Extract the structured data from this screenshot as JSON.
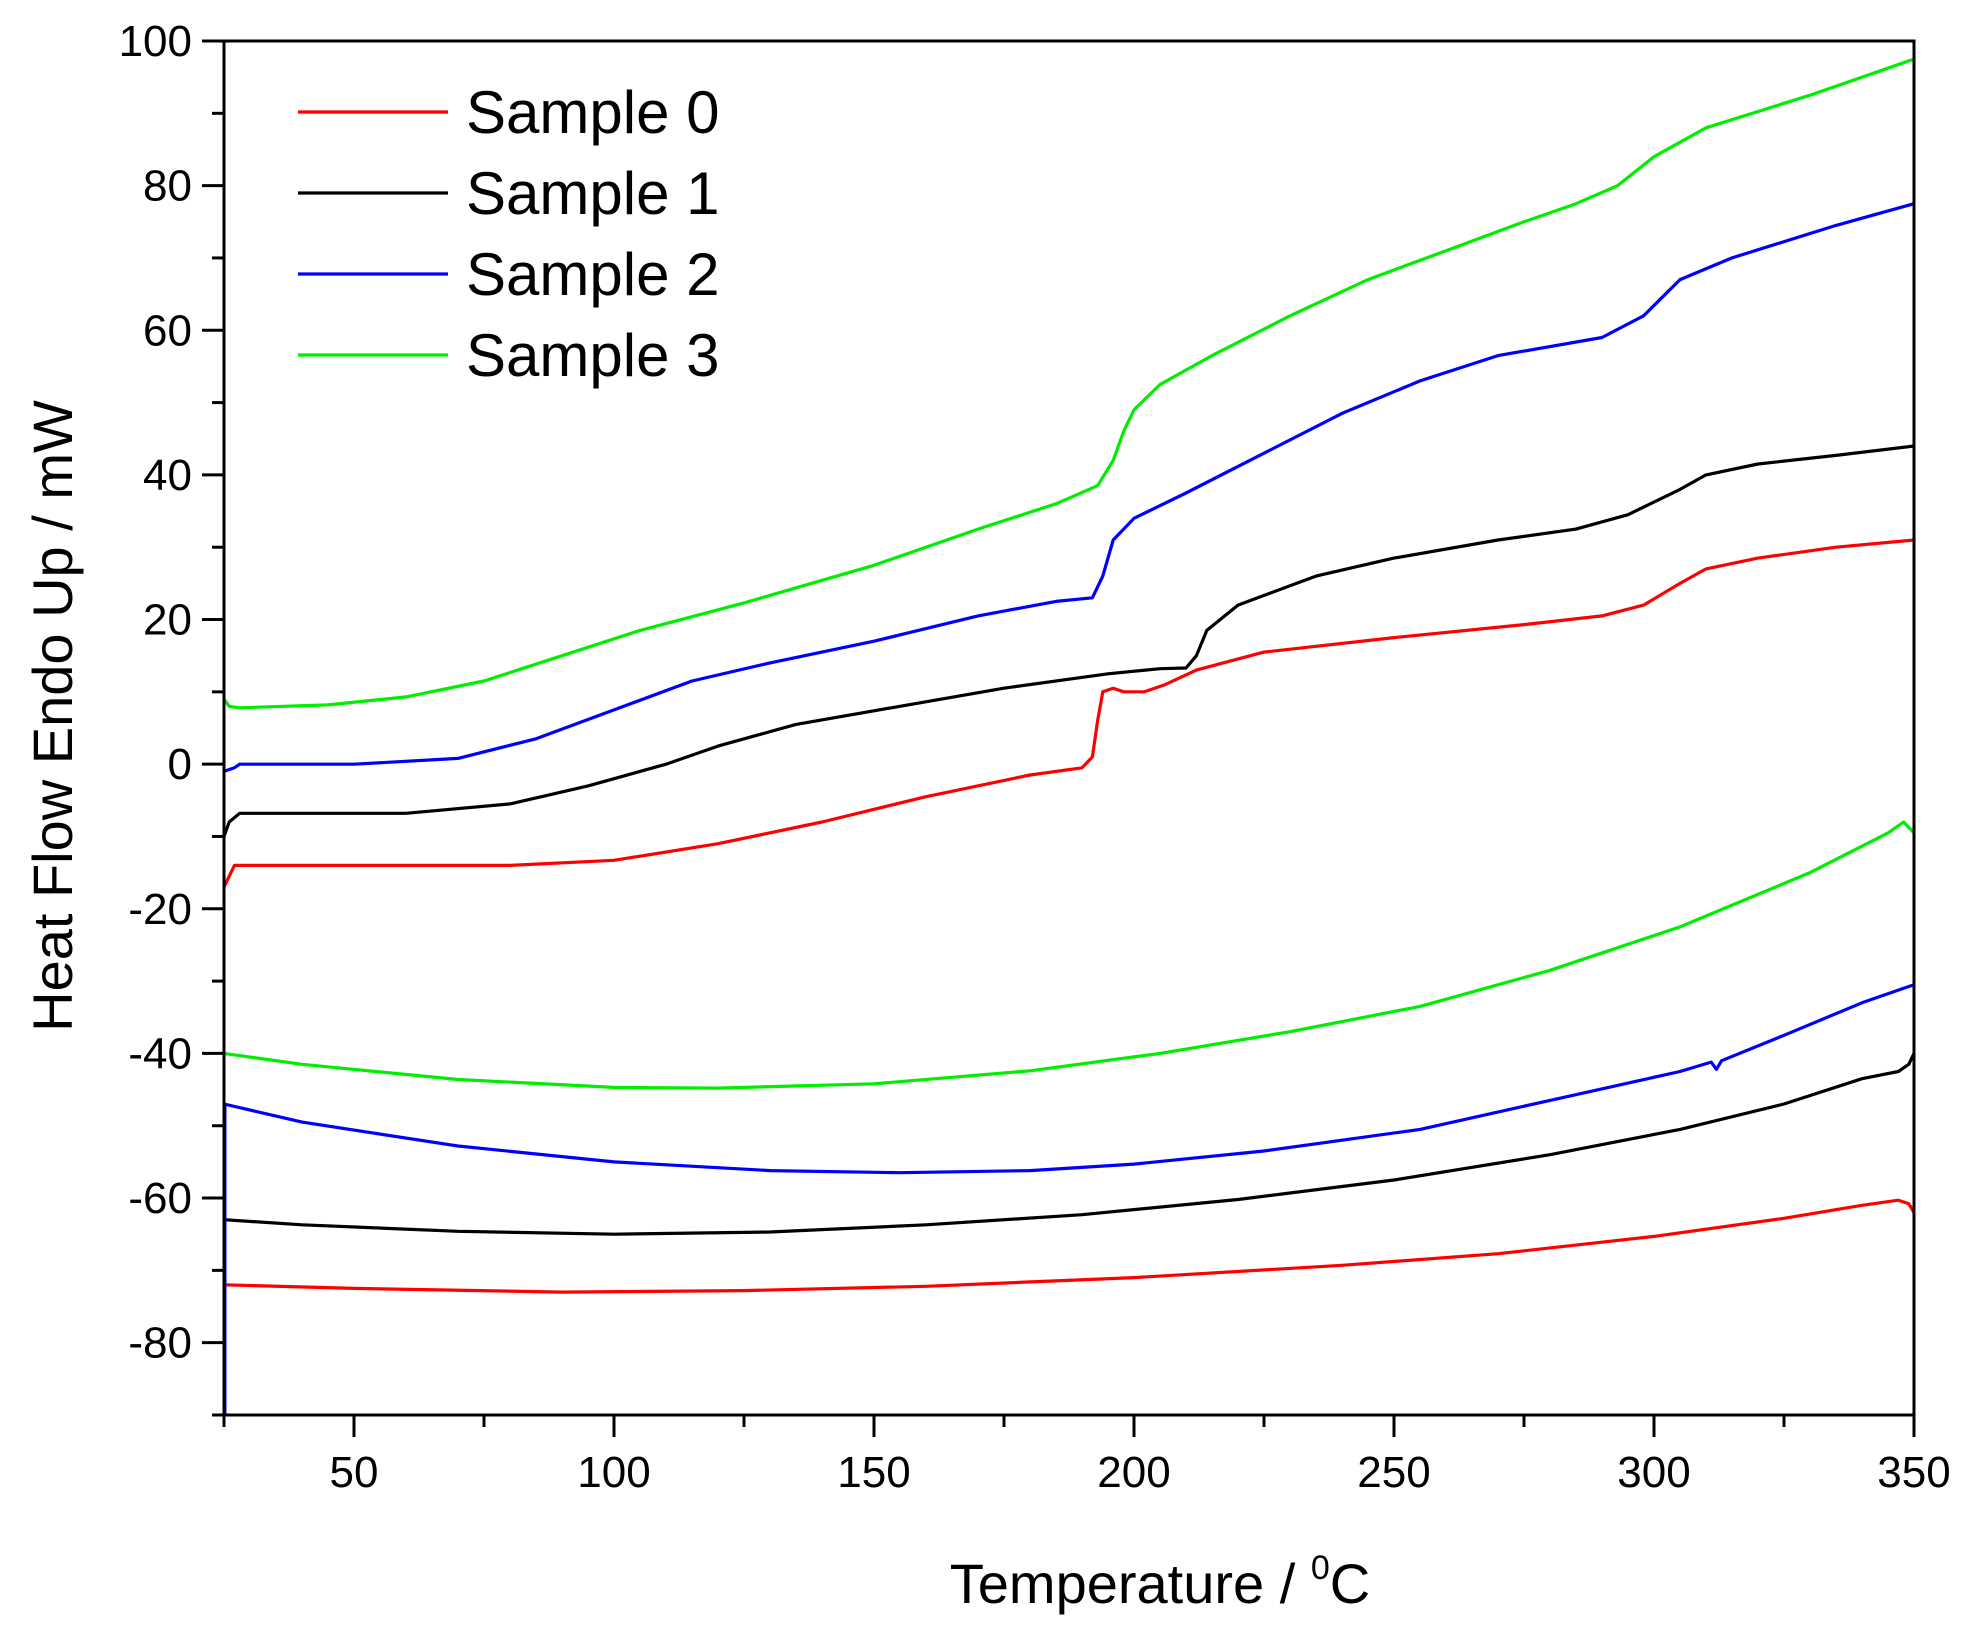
{
  "chart_data": {
    "type": "line",
    "title": "",
    "xlabel": "Temperature / ",
    "xlabel_superscript": "0",
    "xlabel_unit": "C",
    "ylabel": "Heat Flow Endo Up / mW",
    "xlim": [
      25,
      350
    ],
    "ylim": [
      -90,
      100
    ],
    "xticks": [
      50,
      100,
      150,
      200,
      250,
      300,
      350
    ],
    "xtick_labels": [
      "50",
      "100",
      "150",
      "200",
      "250",
      "300",
      "350"
    ],
    "yticks": [
      -80,
      -60,
      -40,
      -20,
      0,
      20,
      40,
      60,
      80,
      100
    ],
    "ytick_labels": [
      "-80",
      "-60",
      "-40",
      "-20",
      "0",
      "20",
      "40",
      "60",
      "80",
      "100"
    ],
    "legend_position": "top-left",
    "series": [
      {
        "name": "Sample 0",
        "color": "#ff0000",
        "heating": [
          [
            25,
            -17
          ],
          [
            27,
            -14
          ],
          [
            30,
            -14
          ],
          [
            60,
            -14
          ],
          [
            80,
            -14
          ],
          [
            100,
            -13.3
          ],
          [
            120,
            -11
          ],
          [
            140,
            -8
          ],
          [
            160,
            -4.5
          ],
          [
            180,
            -1.5
          ],
          [
            190,
            -0.5
          ],
          [
            192,
            1
          ],
          [
            193,
            6
          ],
          [
            194,
            10
          ],
          [
            196,
            10.5
          ],
          [
            198,
            10
          ],
          [
            202,
            10
          ],
          [
            206,
            11
          ],
          [
            212,
            13
          ],
          [
            225,
            15.5
          ],
          [
            250,
            17.5
          ],
          [
            275,
            19.3
          ],
          [
            290,
            20.5
          ],
          [
            298,
            22
          ],
          [
            305,
            25
          ],
          [
            310,
            27
          ],
          [
            320,
            28.5
          ],
          [
            335,
            30
          ],
          [
            350,
            31
          ]
        ],
        "cooling": [
          [
            25,
            -72
          ],
          [
            50,
            -72.5
          ],
          [
            90,
            -73
          ],
          [
            125,
            -72.8
          ],
          [
            160,
            -72.2
          ],
          [
            200,
            -71
          ],
          [
            240,
            -69.3
          ],
          [
            270,
            -67.7
          ],
          [
            300,
            -65.3
          ],
          [
            325,
            -62.8
          ],
          [
            340,
            -61
          ],
          [
            347,
            -60.3
          ],
          [
            349,
            -60.8
          ],
          [
            350,
            -62
          ]
        ]
      },
      {
        "name": "Sample 1",
        "color": "#000000",
        "heating": [
          [
            25,
            -10
          ],
          [
            26,
            -8
          ],
          [
            28,
            -6.8
          ],
          [
            40,
            -6.8
          ],
          [
            60,
            -6.8
          ],
          [
            80,
            -5.5
          ],
          [
            95,
            -3
          ],
          [
            110,
            0
          ],
          [
            120,
            2.5
          ],
          [
            135,
            5.5
          ],
          [
            155,
            8
          ],
          [
            175,
            10.5
          ],
          [
            195,
            12.5
          ],
          [
            205,
            13.2
          ],
          [
            210,
            13.3
          ],
          [
            212,
            15
          ],
          [
            214,
            18.5
          ],
          [
            220,
            22
          ],
          [
            235,
            26
          ],
          [
            250,
            28.5
          ],
          [
            270,
            31
          ],
          [
            285,
            32.5
          ],
          [
            295,
            34.5
          ],
          [
            305,
            38
          ],
          [
            310,
            40
          ],
          [
            320,
            41.5
          ],
          [
            335,
            42.7
          ],
          [
            350,
            44
          ]
        ],
        "cooling": [
          [
            25,
            -63
          ],
          [
            40,
            -63.7
          ],
          [
            70,
            -64.6
          ],
          [
            100,
            -65
          ],
          [
            130,
            -64.7
          ],
          [
            160,
            -63.7
          ],
          [
            190,
            -62.3
          ],
          [
            220,
            -60.2
          ],
          [
            250,
            -57.5
          ],
          [
            280,
            -54
          ],
          [
            305,
            -50.5
          ],
          [
            325,
            -47
          ],
          [
            340,
            -43.5
          ],
          [
            347,
            -42.5
          ],
          [
            349,
            -41.5
          ],
          [
            350,
            -40
          ]
        ]
      },
      {
        "name": "Sample 2",
        "color": "#0000ff",
        "heating": [
          [
            25,
            -1
          ],
          [
            27,
            -0.5
          ],
          [
            28,
            0
          ],
          [
            50,
            0
          ],
          [
            70,
            0.8
          ],
          [
            85,
            3.5
          ],
          [
            100,
            7.5
          ],
          [
            115,
            11.5
          ],
          [
            130,
            14
          ],
          [
            150,
            17
          ],
          [
            170,
            20.5
          ],
          [
            185,
            22.5
          ],
          [
            192,
            23
          ],
          [
            194,
            26
          ],
          [
            196,
            31
          ],
          [
            200,
            34
          ],
          [
            210,
            37.5
          ],
          [
            225,
            43
          ],
          [
            240,
            48.5
          ],
          [
            255,
            53
          ],
          [
            270,
            56.5
          ],
          [
            290,
            59
          ],
          [
            298,
            62
          ],
          [
            305,
            67
          ],
          [
            315,
            70
          ],
          [
            335,
            74.5
          ],
          [
            350,
            77.5
          ]
        ],
        "cooling": [
          [
            25,
            -47
          ],
          [
            40,
            -49.5
          ],
          [
            70,
            -52.8
          ],
          [
            100,
            -55
          ],
          [
            130,
            -56.2
          ],
          [
            155,
            -56.5
          ],
          [
            180,
            -56.2
          ],
          [
            200,
            -55.3
          ],
          [
            225,
            -53.5
          ],
          [
            255,
            -50.5
          ],
          [
            280,
            -46.5
          ],
          [
            305,
            -42.5
          ],
          [
            311,
            -41.2
          ],
          [
            312,
            -42.2
          ],
          [
            313,
            -41
          ],
          [
            325,
            -37.5
          ],
          [
            340,
            -33
          ],
          [
            350,
            -30.5
          ]
        ]
      },
      {
        "name": "Sample 3",
        "color": "#00ee00",
        "heating": [
          [
            25,
            9
          ],
          [
            26,
            8
          ],
          [
            28,
            7.8
          ],
          [
            45,
            8.2
          ],
          [
            60,
            9.3
          ],
          [
            75,
            11.5
          ],
          [
            90,
            15
          ],
          [
            105,
            18.5
          ],
          [
            125,
            22.3
          ],
          [
            150,
            27.5
          ],
          [
            170,
            32.5
          ],
          [
            185,
            36
          ],
          [
            193,
            38.5
          ],
          [
            196,
            42
          ],
          [
            198,
            46
          ],
          [
            200,
            49
          ],
          [
            205,
            52.5
          ],
          [
            215,
            56.5
          ],
          [
            230,
            62
          ],
          [
            245,
            67
          ],
          [
            260,
            71
          ],
          [
            275,
            75
          ],
          [
            285,
            77.5
          ],
          [
            293,
            80
          ],
          [
            300,
            84
          ],
          [
            310,
            88
          ],
          [
            330,
            92.5
          ],
          [
            350,
            97.5
          ]
        ],
        "cooling": [
          [
            25,
            -40
          ],
          [
            40,
            -41.5
          ],
          [
            70,
            -43.6
          ],
          [
            100,
            -44.7
          ],
          [
            120,
            -44.8
          ],
          [
            150,
            -44.2
          ],
          [
            180,
            -42.4
          ],
          [
            205,
            -40
          ],
          [
            230,
            -37
          ],
          [
            255,
            -33.5
          ],
          [
            280,
            -28.5
          ],
          [
            305,
            -22.5
          ],
          [
            330,
            -15
          ],
          [
            345,
            -9.5
          ],
          [
            348,
            -8
          ],
          [
            350,
            -9.5
          ]
        ]
      }
    ]
  }
}
